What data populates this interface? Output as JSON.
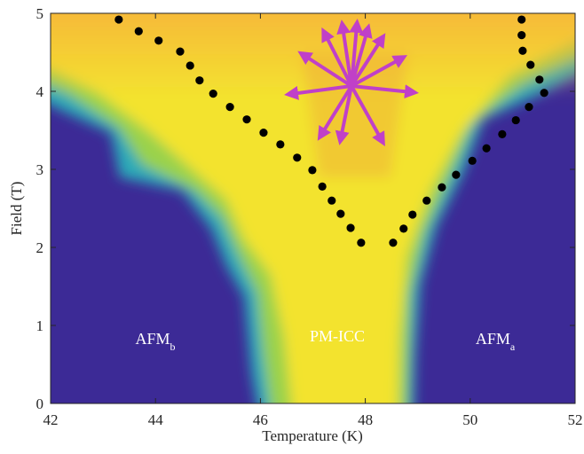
{
  "chart_data": {
    "type": "scatter",
    "xlabel": "Temperature (K)",
    "ylabel": "Field (T)",
    "xlim": [
      42,
      52
    ],
    "xticks": [
      42,
      44,
      46,
      48,
      50,
      52
    ],
    "ylim": [
      0,
      5
    ],
    "yticks": [
      0,
      1,
      2,
      3,
      4,
      5
    ],
    "series": [
      {
        "color": "#000000",
        "x": [
          43.3,
          43.68,
          44.06,
          44.47,
          44.66,
          44.84,
          45.1,
          45.42,
          45.74,
          46.06,
          46.38,
          46.7,
          46.99,
          47.18,
          47.36,
          47.53,
          47.72,
          47.92
        ],
        "values": [
          4.92,
          4.77,
          4.65,
          4.51,
          4.33,
          4.14,
          3.97,
          3.8,
          3.64,
          3.47,
          3.32,
          3.15,
          2.99,
          2.78,
          2.6,
          2.43,
          2.25,
          2.06
        ]
      },
      {
        "color": "#000000",
        "x": [
          48.53,
          48.73,
          48.9,
          49.17,
          49.46,
          49.73,
          50.04,
          50.31,
          50.61,
          50.87,
          51.12,
          51.41,
          51.32,
          51.15,
          51.0,
          50.98,
          50.98
        ],
        "values": [
          2.06,
          2.24,
          2.42,
          2.6,
          2.77,
          2.93,
          3.11,
          3.27,
          3.45,
          3.63,
          3.8,
          3.98,
          4.15,
          4.34,
          4.52,
          4.72,
          4.92
        ]
      }
    ],
    "annotations": [
      {
        "text": "AFM",
        "sub": "b"
      },
      {
        "text": "PM-ICC"
      },
      {
        "text": "AFM",
        "sub": "a"
      }
    ]
  }
}
